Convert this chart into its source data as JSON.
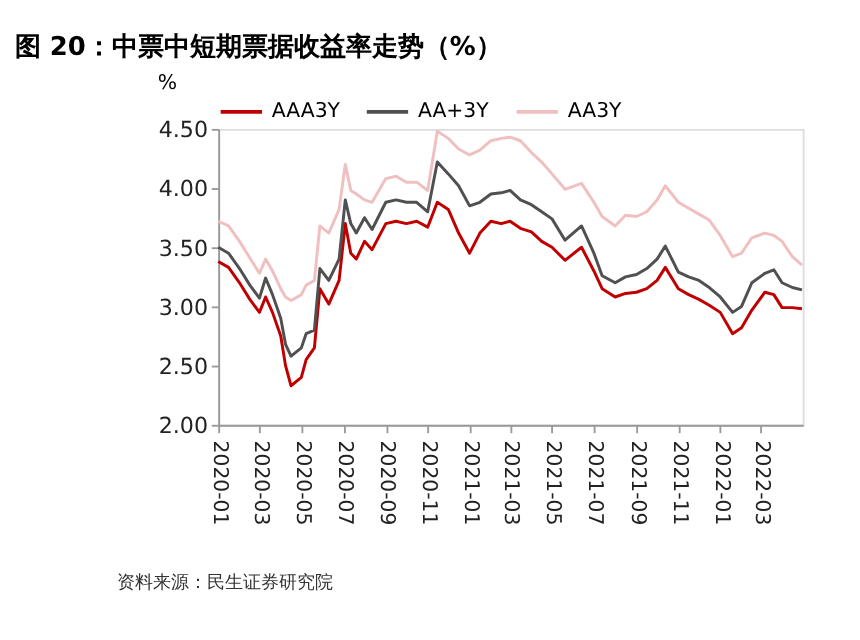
{
  "chart_data": {
    "type": "line",
    "title": "图 20：中票中短期票据收益率走势（%）",
    "ylabel": "%",
    "x": [
      "2020-01-01",
      "2020-01-16",
      "2020-02-01",
      "2020-02-16",
      "2020-03-01",
      "2020-03-10",
      "2020-03-20",
      "2020-04-01",
      "2020-04-08",
      "2020-04-16",
      "2020-05-01",
      "2020-05-08",
      "2020-05-20",
      "2020-05-28",
      "2020-06-10",
      "2020-06-25",
      "2020-07-04",
      "2020-07-12",
      "2020-07-20",
      "2020-08-01",
      "2020-08-12",
      "2020-09-01",
      "2020-09-16",
      "2020-10-01",
      "2020-10-16",
      "2020-11-01",
      "2020-11-15",
      "2020-12-01",
      "2020-12-16",
      "2021-01-01",
      "2021-01-16",
      "2021-02-01",
      "2021-02-16",
      "2021-03-01",
      "2021-03-16",
      "2021-04-01",
      "2021-04-16",
      "2021-05-01",
      "2021-05-20",
      "2021-06-13",
      "2021-07-01",
      "2021-07-13",
      "2021-08-01",
      "2021-08-16",
      "2021-09-01",
      "2021-09-16",
      "2021-10-01",
      "2021-10-13",
      "2021-11-01",
      "2021-11-16",
      "2021-12-01",
      "2021-12-16",
      "2022-01-01",
      "2022-01-19",
      "2022-02-01",
      "2022-02-16",
      "2022-03-07",
      "2022-03-20",
      "2022-04-01",
      "2022-04-16",
      "2022-04-30"
    ],
    "series": [
      {
        "name": "AAA3Y",
        "color": "#c00000",
        "values": [
          3.38,
          3.33,
          3.2,
          3.06,
          2.95,
          3.08,
          2.95,
          2.75,
          2.5,
          2.33,
          2.4,
          2.55,
          2.65,
          3.15,
          3.02,
          3.22,
          3.7,
          3.45,
          3.4,
          3.55,
          3.48,
          3.7,
          3.72,
          3.7,
          3.72,
          3.67,
          3.88,
          3.82,
          3.62,
          3.45,
          3.62,
          3.72,
          3.7,
          3.72,
          3.66,
          3.63,
          3.55,
          3.5,
          3.39,
          3.5,
          3.3,
          3.15,
          3.08,
          3.11,
          3.12,
          3.15,
          3.22,
          3.33,
          3.15,
          3.1,
          3.06,
          3.01,
          2.95,
          2.77,
          2.82,
          2.97,
          3.12,
          3.1,
          2.99,
          2.99,
          2.98
        ]
      },
      {
        "name": "AA+3Y",
        "color": "#505050",
        "values": [
          3.5,
          3.45,
          3.32,
          3.18,
          3.07,
          3.24,
          3.1,
          2.9,
          2.68,
          2.58,
          2.65,
          2.77,
          2.8,
          3.32,
          3.22,
          3.4,
          3.9,
          3.7,
          3.62,
          3.75,
          3.65,
          3.88,
          3.9,
          3.88,
          3.88,
          3.8,
          4.22,
          4.12,
          4.02,
          3.85,
          3.88,
          3.95,
          3.96,
          3.98,
          3.9,
          3.86,
          3.8,
          3.74,
          3.56,
          3.68,
          3.45,
          3.26,
          3.2,
          3.25,
          3.27,
          3.32,
          3.4,
          3.51,
          3.29,
          3.25,
          3.22,
          3.16,
          3.08,
          2.95,
          3.0,
          3.2,
          3.28,
          3.31,
          3.2,
          3.16,
          3.14
        ]
      },
      {
        "name": "AA3Y",
        "color": "#f0c0c0",
        "values": [
          3.72,
          3.68,
          3.55,
          3.41,
          3.28,
          3.4,
          3.3,
          3.15,
          3.08,
          3.05,
          3.1,
          3.18,
          3.22,
          3.68,
          3.62,
          3.82,
          4.2,
          3.98,
          3.95,
          3.9,
          3.88,
          4.08,
          4.1,
          4.05,
          4.05,
          3.98,
          4.48,
          4.42,
          4.33,
          4.28,
          4.32,
          4.4,
          4.42,
          4.43,
          4.4,
          4.3,
          4.22,
          4.12,
          3.99,
          4.04,
          3.88,
          3.76,
          3.68,
          3.77,
          3.76,
          3.8,
          3.9,
          4.02,
          3.88,
          3.83,
          3.78,
          3.73,
          3.6,
          3.42,
          3.45,
          3.58,
          3.62,
          3.6,
          3.55,
          3.42,
          3.35
        ]
      }
    ],
    "xlim": [
      "2020-01-01",
      "2022-05-01"
    ],
    "xticks": [
      "2020-01",
      "2020-03",
      "2020-05",
      "2020-07",
      "2020-09",
      "2020-11",
      "2021-01",
      "2021-03",
      "2021-05",
      "2021-07",
      "2021-09",
      "2021-11",
      "2022-01",
      "2022-03"
    ],
    "ylim": [
      2.0,
      4.5
    ],
    "yticks": [
      {
        "value": 2.0,
        "label": "2.00"
      },
      {
        "value": 2.5,
        "label": "2.50"
      },
      {
        "value": 3.0,
        "label": "3.00"
      },
      {
        "value": 3.5,
        "label": "3.50"
      },
      {
        "value": 4.0,
        "label": "4.00"
      },
      {
        "value": 4.5,
        "label": "4.50"
      }
    ],
    "grid": false,
    "legend": "top",
    "marker": "none",
    "line_style": "solid",
    "annotations": [
      "资料来源：民生证券研究院"
    ]
  }
}
